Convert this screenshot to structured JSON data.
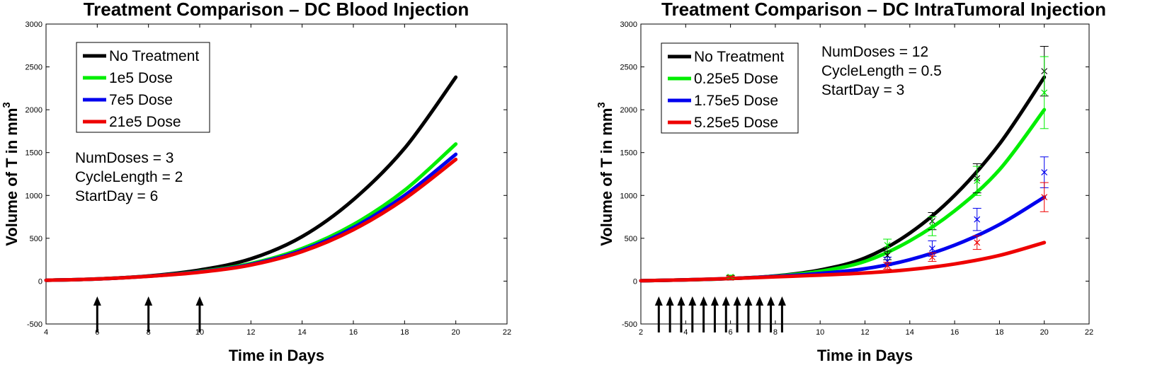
{
  "chart_data": [
    {
      "type": "line",
      "title": "Treatment Comparison – DC Blood Injection",
      "xlabel": "Time in Days",
      "ylabel": "Volume of T in mm",
      "ylabel_sup": "3",
      "xlim": [
        4,
        22
      ],
      "ylim": [
        -500,
        3000
      ],
      "xticks": [
        4,
        6,
        8,
        10,
        12,
        14,
        16,
        18,
        20,
        22
      ],
      "yticks": [
        -500,
        0,
        500,
        1000,
        1500,
        2000,
        2500,
        3000
      ],
      "x": [
        4,
        6,
        8,
        10,
        12,
        14,
        16,
        18,
        20
      ],
      "series": [
        {
          "name": "No Treatment",
          "color": "#000000",
          "values": [
            10,
            25,
            60,
            130,
            260,
            520,
            950,
            1550,
            2380
          ]
        },
        {
          "name": "1e5 Dose",
          "color": "#00ee00",
          "values": [
            10,
            25,
            58,
            112,
            205,
            380,
            660,
            1060,
            1600
          ]
        },
        {
          "name": "7e5 Dose",
          "color": "#0000ee",
          "values": [
            10,
            25,
            57,
            108,
            195,
            360,
            625,
            1000,
            1480
          ]
        },
        {
          "name": "21e5 Dose",
          "color": "#ee0000",
          "values": [
            10,
            25,
            56,
            104,
            188,
            345,
            600,
            960,
            1420
          ]
        }
      ],
      "legend": "top-left",
      "annotations": [
        "NumDoses = 3",
        "CycleLength = 2",
        "StartDay = 6"
      ],
      "dose_arrows": [
        6,
        8,
        10
      ]
    },
    {
      "type": "line",
      "title": "Treatment Comparison – DC IntraTumoral Injection",
      "xlabel": "Time in Days",
      "ylabel": "Volume of T in mm",
      "ylabel_sup": "3",
      "xlim": [
        2,
        22
      ],
      "ylim": [
        -500,
        3000
      ],
      "xticks": [
        2,
        4,
        6,
        8,
        10,
        12,
        14,
        16,
        18,
        20,
        22
      ],
      "yticks": [
        -500,
        0,
        500,
        1000,
        1500,
        2000,
        2500,
        3000
      ],
      "x": [
        2,
        4,
        6,
        8,
        10,
        12,
        14,
        16,
        18,
        20
      ],
      "series": [
        {
          "name": "No Treatment",
          "color": "#000000",
          "values": [
            5,
            15,
            30,
            60,
            130,
            270,
            560,
            1000,
            1600,
            2380
          ]
        },
        {
          "name": "0.25e5 Dose",
          "color": "#00ee00",
          "values": [
            5,
            15,
            30,
            58,
            115,
            230,
            470,
            820,
            1300,
            2000
          ]
        },
        {
          "name": "1.75e5 Dose",
          "color": "#0000ee",
          "values": [
            5,
            15,
            30,
            55,
            90,
            145,
            250,
            420,
            660,
            980
          ]
        },
        {
          "name": "5.25e5 Dose",
          "color": "#ee0000",
          "values": [
            5,
            15,
            30,
            50,
            70,
            95,
            135,
            200,
            300,
            450
          ]
        }
      ],
      "legend": "top-left",
      "annotations": [
        "NumDoses = 12",
        "CycleLength = 0.5",
        "StartDay = 3"
      ],
      "dose_arrows": [
        2.8,
        3.3,
        3.8,
        4.3,
        4.8,
        5.3,
        5.8,
        6.3,
        6.8,
        7.3,
        7.8,
        8.3
      ],
      "error_points": [
        {
          "x": 6,
          "color": "#000000",
          "y": 45,
          "err": 20
        },
        {
          "x": 6,
          "color": "#00ee00",
          "y": 50,
          "err": 20
        },
        {
          "x": 6,
          "color": "#ee0000",
          "y": 40,
          "err": 15
        },
        {
          "x": 13,
          "color": "#00ee00",
          "y": 420,
          "err": 70
        },
        {
          "x": 13,
          "color": "#000000",
          "y": 300,
          "err": 50
        },
        {
          "x": 13,
          "color": "#0000ee",
          "y": 230,
          "err": 50
        },
        {
          "x": 13,
          "color": "#ee0000",
          "y": 180,
          "err": 40
        },
        {
          "x": 15,
          "color": "#000000",
          "y": 700,
          "err": 100
        },
        {
          "x": 15,
          "color": "#00ee00",
          "y": 640,
          "err": 110
        },
        {
          "x": 15,
          "color": "#0000ee",
          "y": 380,
          "err": 90
        },
        {
          "x": 15,
          "color": "#ee0000",
          "y": 280,
          "err": 50
        },
        {
          "x": 17,
          "color": "#000000",
          "y": 1200,
          "err": 170
        },
        {
          "x": 17,
          "color": "#00ee00",
          "y": 1170,
          "err": 170
        },
        {
          "x": 17,
          "color": "#0000ee",
          "y": 720,
          "err": 130
        },
        {
          "x": 17,
          "color": "#ee0000",
          "y": 450,
          "err": 80
        },
        {
          "x": 20,
          "color": "#000000",
          "y": 2450,
          "err": 290
        },
        {
          "x": 20,
          "color": "#00ee00",
          "y": 2200,
          "err": 420
        },
        {
          "x": 20,
          "color": "#0000ee",
          "y": 1270,
          "err": 180
        },
        {
          "x": 20,
          "color": "#ee0000",
          "y": 980,
          "err": 170
        }
      ]
    }
  ]
}
